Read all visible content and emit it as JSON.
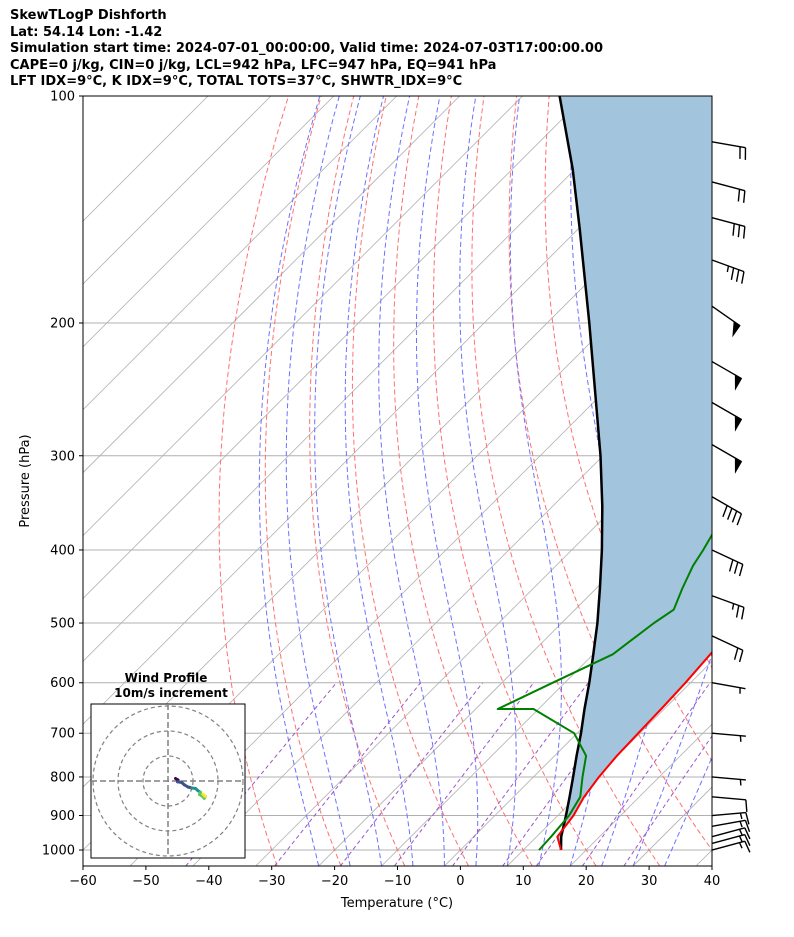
{
  "header": {
    "line1": "SkewTLogP Dishforth",
    "line2": "Lat: 54.14   Lon: -1.42",
    "line3": "Simulation start time: 2024-07-01_00:00:00, Valid time: 2024-07-03T17:00:00.00",
    "line4": "CAPE=0 j/kg, CIN=0 j/kg, LCL=942 hPa, LFC=947 hPa, EQ=941 hPa",
    "line5": "LFT IDX=9°C, K IDX=9°C, TOTAL TOTS=37°C, SHWTR_IDX=9°C"
  },
  "chart_data": {
    "type": "line",
    "xlabel": "Temperature (°C)",
    "ylabel": "Pressure (hPa)",
    "xlim": [
      -60,
      40
    ],
    "ylim": [
      1050,
      100
    ],
    "y_scale": "log",
    "x_ticks": [
      "−60",
      "−50",
      "−40",
      "−30",
      "−20",
      "−10",
      "0",
      "10",
      "20",
      "30",
      "40"
    ],
    "y_ticks": [
      "100",
      "200",
      "300",
      "400",
      "500",
      "600",
      "700",
      "800",
      "900",
      "1000"
    ],
    "grid": true,
    "colors": {
      "temperature": "#ff0000",
      "dewpoint": "#008000",
      "parcel": "#000000",
      "cape_fill": "#a2c5dd",
      "dry_adiabats": "#ff7070",
      "moist_adiabats": "#6f70ff",
      "mixing_ratio": "#9c55c8",
      "isotherms": "#b0b0b0"
    },
    "series": [
      {
        "key": "temperature",
        "pressure": [
          1000,
          960,
          900,
          850,
          800,
          750,
          700,
          650,
          600,
          550,
          500,
          450,
          400,
          350,
          300,
          270,
          250,
          230,
          200,
          180,
          170,
          150,
          130,
          115,
          105,
          100
        ],
        "values": [
          16,
          13.3,
          12.5,
          11.2,
          10.4,
          9.9,
          9.7,
          9.5,
          9.2,
          8.6,
          8.0,
          7.3,
          5.2,
          1.6,
          -2.6,
          -5.5,
          -8.7,
          -9.7,
          -11.9,
          -14.2,
          -15.3,
          -17.8,
          -21.8,
          -26.9,
          -31.2,
          -33.3
        ]
      },
      {
        "key": "dewpoint",
        "pressure": [
          1000,
          960,
          900,
          850,
          800,
          750,
          700,
          650,
          650,
          600,
          550,
          500,
          480,
          450,
          420,
          400,
          350,
          300,
          270,
          250,
          220,
          200,
          175,
          160,
          140,
          135,
          120,
          100
        ],
        "values": [
          12.5,
          12.3,
          11.8,
          10.6,
          7.8,
          5.0,
          -0.5,
          -10.8,
          -16.5,
          -11.9,
          -6.9,
          -5.3,
          -4.3,
          -6.3,
          -8.2,
          -9.1,
          -12.0,
          -15.8,
          -19.0,
          -23.5,
          -29.0,
          -34.2,
          -38.6,
          -42.5,
          -51.5,
          -57.0,
          -58.3,
          -63.0
        ]
      },
      {
        "key": "parcel",
        "pressure": [
          1000,
          960,
          900,
          850,
          800,
          750,
          700,
          650,
          600,
          550,
          500,
          450,
          400,
          350,
          300,
          250,
          200,
          150,
          125,
          100
        ],
        "values": [
          16.0,
          13.9,
          11.3,
          8.9,
          6.3,
          3.5,
          0.6,
          -2.7,
          -6.1,
          -10.0,
          -14.3,
          -19.4,
          -25.2,
          -32.1,
          -40.4,
          -50.7,
          -63.3,
          -79.8,
          -90.4,
          -104.1
        ]
      }
    ],
    "wind_profile_inset": {
      "title": "Wind Profile",
      "subtitle": "10m/s increment",
      "grid": "dashed concentric rings",
      "points_u_v": [
        [
          3,
          1
        ],
        [
          4,
          0.4
        ],
        [
          3.8,
          -0.3
        ],
        [
          5.5,
          -0.6
        ],
        [
          6.5,
          -1.5
        ],
        [
          8,
          -2.4
        ],
        [
          9.5,
          -2.8
        ],
        [
          11,
          -3.0
        ],
        [
          12,
          -3.9
        ],
        [
          13,
          -4.5
        ],
        [
          12.6,
          -5.4
        ],
        [
          14,
          -6.3
        ],
        [
          14.5,
          -6.9
        ],
        [
          15,
          -6.2
        ],
        [
          14.5,
          -5.8
        ],
        [
          14,
          -5.3
        ]
      ],
      "colormap": [
        "#440154",
        "#3b528b",
        "#21918c",
        "#5ec962",
        "#fde725"
      ]
    },
    "wind_barbs": [
      {
        "p": 1000,
        "speed_kt": 15,
        "dir": 255
      },
      {
        "p": 980,
        "speed_kt": 15,
        "dir": 255
      },
      {
        "p": 960,
        "speed_kt": 15,
        "dir": 255
      },
      {
        "p": 930,
        "speed_kt": 15,
        "dir": 260
      },
      {
        "p": 900,
        "speed_kt": 15,
        "dir": 265
      },
      {
        "p": 850,
        "speed_kt": 10,
        "dir": 275
      },
      {
        "p": 800,
        "speed_kt": 5,
        "dir": 275
      },
      {
        "p": 700,
        "speed_kt": 5,
        "dir": 275
      },
      {
        "p": 600,
        "speed_kt": 5,
        "dir": 280
      },
      {
        "p": 520,
        "speed_kt": 20,
        "dir": 295
      },
      {
        "p": 460,
        "speed_kt": 25,
        "dir": 290
      },
      {
        "p": 400,
        "speed_kt": 30,
        "dir": 295
      },
      {
        "p": 340,
        "speed_kt": 40,
        "dir": 300
      },
      {
        "p": 290,
        "speed_kt": 50,
        "dir": 300
      },
      {
        "p": 255,
        "speed_kt": 50,
        "dir": 300
      },
      {
        "p": 225,
        "speed_kt": 50,
        "dir": 300
      },
      {
        "p": 190,
        "speed_kt": 50,
        "dir": 305
      },
      {
        "p": 165,
        "speed_kt": 35,
        "dir": 290
      },
      {
        "p": 145,
        "speed_kt": 30,
        "dir": 285
      },
      {
        "p": 130,
        "speed_kt": 20,
        "dir": 285
      },
      {
        "p": 115,
        "speed_kt": 20,
        "dir": 280
      }
    ]
  }
}
